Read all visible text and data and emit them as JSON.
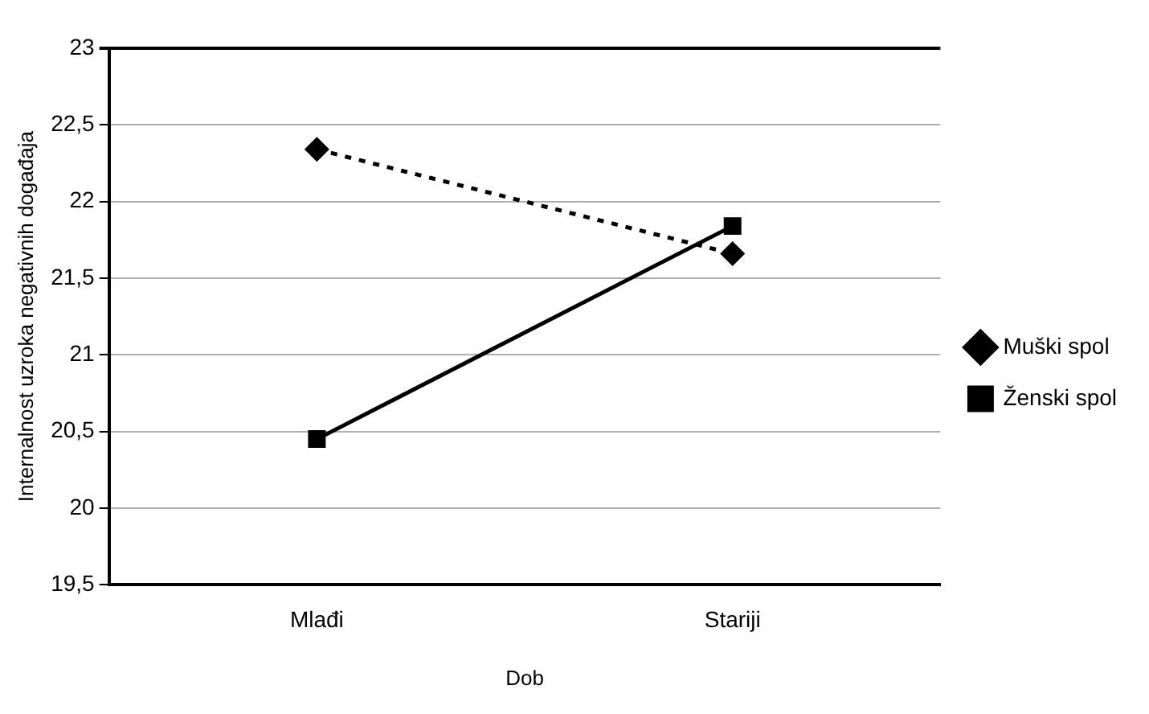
{
  "chart_data": {
    "type": "line",
    "xlabel": "Dob",
    "ylabel": "Internalnost uzroka negativnih događaja",
    "categories": [
      "Mlađi",
      "Stariji"
    ],
    "series": [
      {
        "name": "Muški spol",
        "color": "#000000",
        "values": [
          22.34,
          21.66
        ],
        "marker": "diamond",
        "line_style": "dotted"
      },
      {
        "name": "Ženski spol",
        "color": "#000000",
        "values": [
          20.45,
          21.84
        ],
        "marker": "square",
        "line_style": "solid"
      }
    ],
    "ylim": [
      19.5,
      23
    ],
    "yticks": [
      {
        "value": 19.5,
        "label": "19,5"
      },
      20,
      {
        "value": 20.5,
        "label": "20,5"
      },
      21,
      {
        "value": 21.5,
        "label": "21,5"
      },
      22,
      {
        "value": 22.5,
        "label": "22,5"
      },
      23
    ],
    "grid": "y",
    "legend": "right"
  }
}
